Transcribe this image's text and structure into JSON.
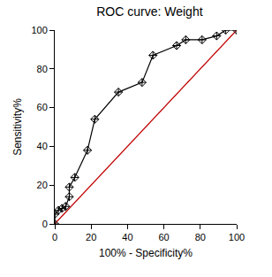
{
  "chart_data": {
    "type": "line",
    "title": "ROC curve: Weight",
    "x_label": "100% - Specificity%",
    "y_label": "Sensitivity%",
    "series": [
      {
        "color": "#000000",
        "marker": "diamond",
        "x": [
          0,
          0,
          2,
          4,
          6,
          8,
          8,
          11,
          18,
          22,
          35,
          48,
          54,
          67,
          72,
          81,
          89,
          94,
          100
        ],
        "values": [
          0,
          5,
          7,
          8,
          9,
          14,
          19,
          24,
          38,
          54,
          68,
          73,
          87,
          92,
          95,
          95,
          97,
          100,
          100
        ]
      },
      {
        "color": "#c00000",
        "line_style": "solid",
        "x": [
          0,
          100
        ],
        "values": [
          0,
          100
        ]
      }
    ],
    "xlim": [
      0,
      100
    ],
    "ylim": [
      0,
      100
    ],
    "xticks": [
      0,
      20,
      40,
      60,
      80,
      100
    ],
    "yticks": [
      0,
      20,
      40,
      60,
      80,
      100
    ],
    "grid": false
  }
}
